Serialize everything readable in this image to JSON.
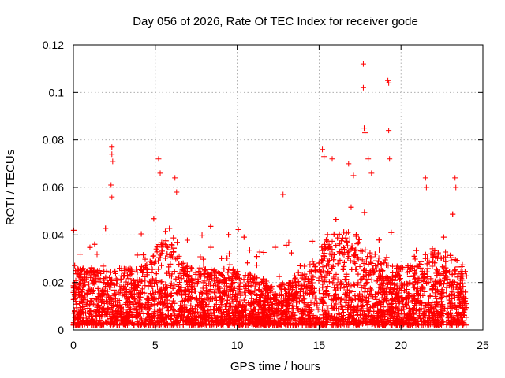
{
  "chart_data": {
    "type": "scatter",
    "title": "Day 056 of 2026, Rate Of TEC Index for receiver gode",
    "xlabel": "GPS time / hours",
    "ylabel": "ROTI / TECUs",
    "xlim": [
      0,
      25
    ],
    "ylim": [
      0,
      0.12
    ],
    "x_ticks": [
      "0",
      "5",
      "10",
      "15",
      "20",
      "25"
    ],
    "y_ticks": [
      "0",
      "0.02",
      "0.04",
      "0.06",
      "0.08",
      "0.1",
      "0.12"
    ],
    "grid": true,
    "marker": "+",
    "series": [
      {
        "name": "ROTI",
        "color": "#ff0000",
        "note": "dense cloud of ~2880 points per satellite set, 0 to 24 h; baseline 0.002-0.03 TECU/s; notable outliers listed in x/y",
        "x": [
          2.35,
          2.35,
          2.4,
          2.3,
          2.35,
          5.2,
          5.3,
          6.2,
          6.3,
          12.8,
          15.2,
          15.3,
          15.8,
          16.8,
          17.1,
          17.7,
          17.7,
          17.75,
          17.8,
          18.0,
          18.2,
          19.2,
          19.25,
          19.25,
          19.3,
          21.5,
          21.55,
          23.3,
          23.35
        ],
        "y": [
          0.077,
          0.074,
          0.071,
          0.061,
          0.056,
          0.072,
          0.066,
          0.064,
          0.058,
          0.057,
          0.076,
          0.073,
          0.072,
          0.07,
          0.065,
          0.112,
          0.102,
          0.085,
          0.083,
          0.072,
          0.066,
          0.105,
          0.104,
          0.084,
          0.072,
          0.064,
          0.06,
          0.064,
          0.06
        ]
      }
    ]
  }
}
